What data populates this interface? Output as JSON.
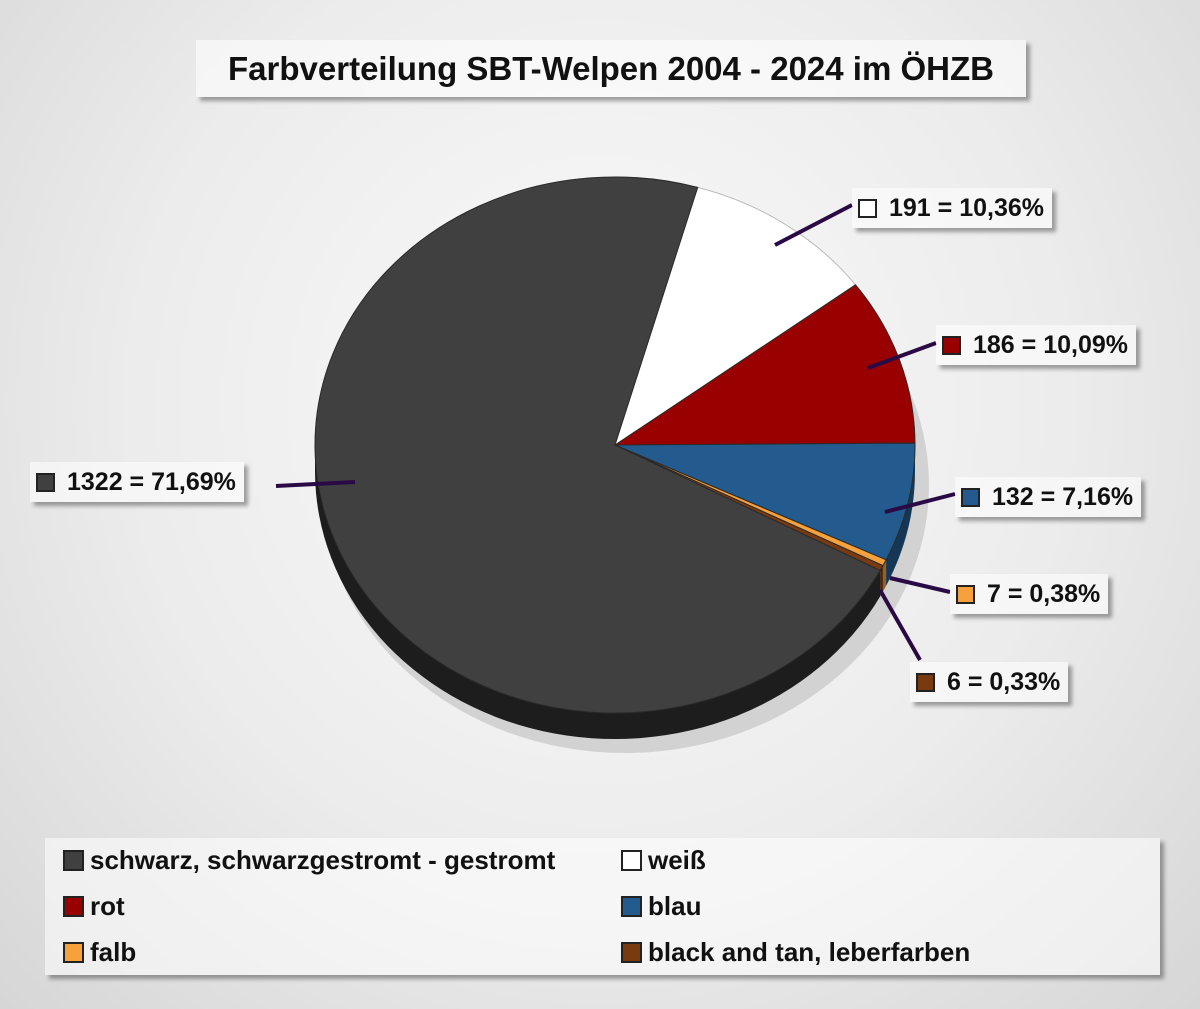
{
  "chart_data": {
    "type": "pie",
    "title": "Farbverteilung SBT-Welpen 2004 - 2024 im ÖHZB",
    "categories": [
      "schwarz, schwarzgestromt - gestromt",
      "weiß",
      "rot",
      "blau",
      "falb",
      "black and tan, leberfarben"
    ],
    "values": [
      1322,
      191,
      186,
      132,
      7,
      6
    ],
    "percentages": [
      71.69,
      10.36,
      10.09,
      7.16,
      0.38,
      0.33
    ],
    "data_labels": [
      "1322 = 71,69%",
      "191 = 10,36%",
      "186 = 10,09%",
      "132 = 7,16%",
      "7 = 0,38%",
      "6 = 0,33%"
    ],
    "colors": [
      "#404040",
      "#ffffff",
      "#990000",
      "#235b8e",
      "#f7a13c",
      "#7a3a10"
    ],
    "legend_position": "bottom"
  }
}
